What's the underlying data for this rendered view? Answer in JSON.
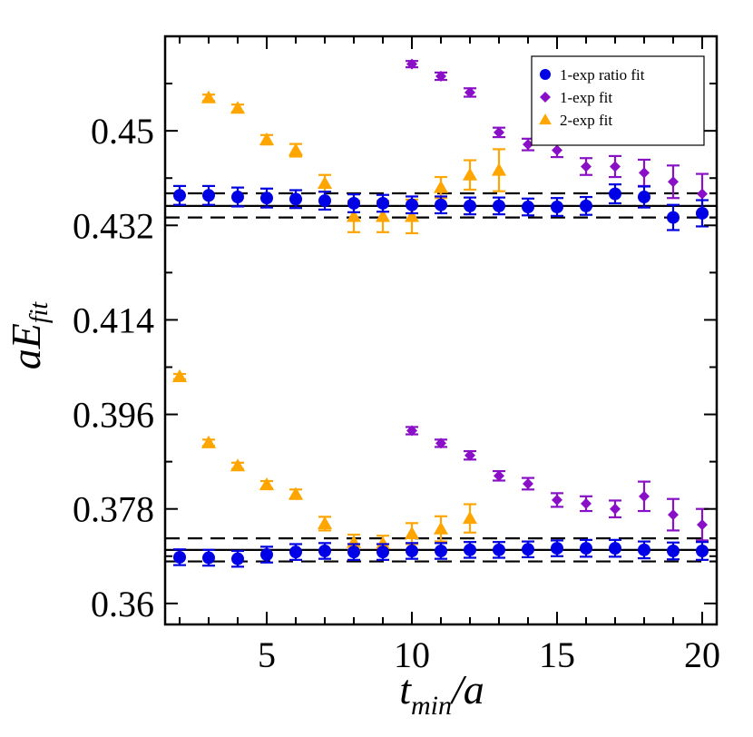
{
  "chart_data": {
    "type": "scatter",
    "xlabel": {
      "main": "t",
      "sub": "min",
      "rest": "/a"
    },
    "ylabel": {
      "main": "aE",
      "sub": "fit"
    },
    "xlim": [
      1.5,
      20.5
    ],
    "ylim": [
      0.356,
      0.468
    ],
    "xticks": [
      5,
      10,
      15,
      20
    ],
    "xtick_labels": [
      "5",
      "10",
      "15",
      "20"
    ],
    "yticks": [
      0.36,
      0.378,
      0.396,
      0.414,
      0.432,
      0.45
    ],
    "ytick_labels": [
      "0.36",
      "0.378",
      "0.396",
      "0.414",
      "0.432",
      "0.45"
    ],
    "grid": false,
    "legend_position": "top-right",
    "legend": [
      {
        "label": "1-exp ratio fit",
        "marker": "circle",
        "color": "#0000e6"
      },
      {
        "label": "1-exp fit",
        "marker": "diamond",
        "color": "#8a10c8"
      },
      {
        "label": "2-exp fit",
        "marker": "triangle",
        "color": "#ffa500"
      }
    ],
    "bands": [
      {
        "central": 0.4357,
        "upper": 0.4381,
        "lower": 0.4335
      },
      {
        "central": 0.3702,
        "upper": 0.3724,
        "lower": 0.368
      }
    ],
    "series": [
      {
        "name": "1-exp ratio fit",
        "marker": "circle",
        "color": "#0000e6",
        "points": [
          [
            2,
            0.4377,
            0.0018
          ],
          [
            3,
            0.4377,
            0.0018
          ],
          [
            4,
            0.4374,
            0.0018
          ],
          [
            5,
            0.4372,
            0.0018
          ],
          [
            6,
            0.437,
            0.0017
          ],
          [
            7,
            0.4367,
            0.0017
          ],
          [
            8,
            0.4362,
            0.0017
          ],
          [
            9,
            0.4362,
            0.0016
          ],
          [
            10,
            0.4359,
            0.0016
          ],
          [
            11,
            0.4359,
            0.0016
          ],
          [
            12,
            0.4357,
            0.0016
          ],
          [
            13,
            0.4357,
            0.0016
          ],
          [
            14,
            0.4355,
            0.0016
          ],
          [
            15,
            0.4355,
            0.0017
          ],
          [
            16,
            0.4357,
            0.0017
          ],
          [
            17,
            0.438,
            0.0018
          ],
          [
            18,
            0.4374,
            0.002
          ],
          [
            19,
            0.4335,
            0.0024
          ],
          [
            20,
            0.4343,
            0.0025
          ],
          [
            2,
            0.3688,
            0.0015
          ],
          [
            3,
            0.3687,
            0.0015
          ],
          [
            4,
            0.3685,
            0.0015
          ],
          [
            5,
            0.3693,
            0.0015
          ],
          [
            6,
            0.3698,
            0.0015
          ],
          [
            7,
            0.37,
            0.0015
          ],
          [
            8,
            0.3698,
            0.0015
          ],
          [
            9,
            0.3698,
            0.0015
          ],
          [
            10,
            0.37,
            0.0015
          ],
          [
            11,
            0.37,
            0.0015
          ],
          [
            12,
            0.3702,
            0.0015
          ],
          [
            13,
            0.3702,
            0.0015
          ],
          [
            14,
            0.3703,
            0.0015
          ],
          [
            15,
            0.3705,
            0.0015
          ],
          [
            16,
            0.3705,
            0.0016
          ],
          [
            17,
            0.3705,
            0.0016
          ],
          [
            18,
            0.3702,
            0.0016
          ],
          [
            19,
            0.37,
            0.0016
          ],
          [
            20,
            0.37,
            0.0017
          ]
        ]
      },
      {
        "name": "1-exp fit",
        "marker": "diamond",
        "color": "#8a10c8",
        "points": [
          [
            10,
            0.4627,
            0.0006
          ],
          [
            11,
            0.4604,
            0.0007
          ],
          [
            12,
            0.4573,
            0.0008
          ],
          [
            13,
            0.4497,
            0.0009
          ],
          [
            14,
            0.4474,
            0.0011
          ],
          [
            15,
            0.4463,
            0.0013
          ],
          [
            16,
            0.4432,
            0.0016
          ],
          [
            17,
            0.4432,
            0.002
          ],
          [
            18,
            0.442,
            0.0025
          ],
          [
            19,
            0.4403,
            0.0031
          ],
          [
            20,
            0.438,
            0.0038
          ],
          [
            10,
            0.3929,
            0.0007
          ],
          [
            11,
            0.3905,
            0.0007
          ],
          [
            12,
            0.3882,
            0.0008
          ],
          [
            13,
            0.3843,
            0.0009
          ],
          [
            14,
            0.3828,
            0.0011
          ],
          [
            15,
            0.3797,
            0.0013
          ],
          [
            16,
            0.379,
            0.0014
          ],
          [
            17,
            0.378,
            0.0016
          ],
          [
            18,
            0.3804,
            0.0028
          ],
          [
            19,
            0.3769,
            0.003
          ],
          [
            20,
            0.375,
            0.003
          ]
        ]
      },
      {
        "name": "2-exp fit",
        "marker": "triangle",
        "color": "#ffa500",
        "points": [
          [
            3,
            0.4563,
            0.0006
          ],
          [
            4,
            0.4543,
            0.0007
          ],
          [
            5,
            0.4483,
            0.0009
          ],
          [
            6,
            0.4463,
            0.0012
          ],
          [
            7,
            0.44,
            0.0016
          ],
          [
            8,
            0.4337,
            0.003
          ],
          [
            9,
            0.4337,
            0.003
          ],
          [
            10,
            0.4337,
            0.0032
          ],
          [
            11,
            0.4392,
            0.002
          ],
          [
            12,
            0.4416,
            0.0028
          ],
          [
            13,
            0.4425,
            0.004
          ],
          [
            2,
            0.4032,
            0.0005
          ],
          [
            3,
            0.3906,
            0.0006
          ],
          [
            4,
            0.3862,
            0.0006
          ],
          [
            5,
            0.3826,
            0.0007
          ],
          [
            6,
            0.3808,
            0.0009
          ],
          [
            7,
            0.3752,
            0.0013
          ],
          [
            8,
            0.3716,
            0.0015
          ],
          [
            9,
            0.3714,
            0.0015
          ],
          [
            10,
            0.3733,
            0.002
          ],
          [
            11,
            0.3742,
            0.0024
          ],
          [
            12,
            0.3762,
            0.0027
          ]
        ]
      }
    ]
  }
}
